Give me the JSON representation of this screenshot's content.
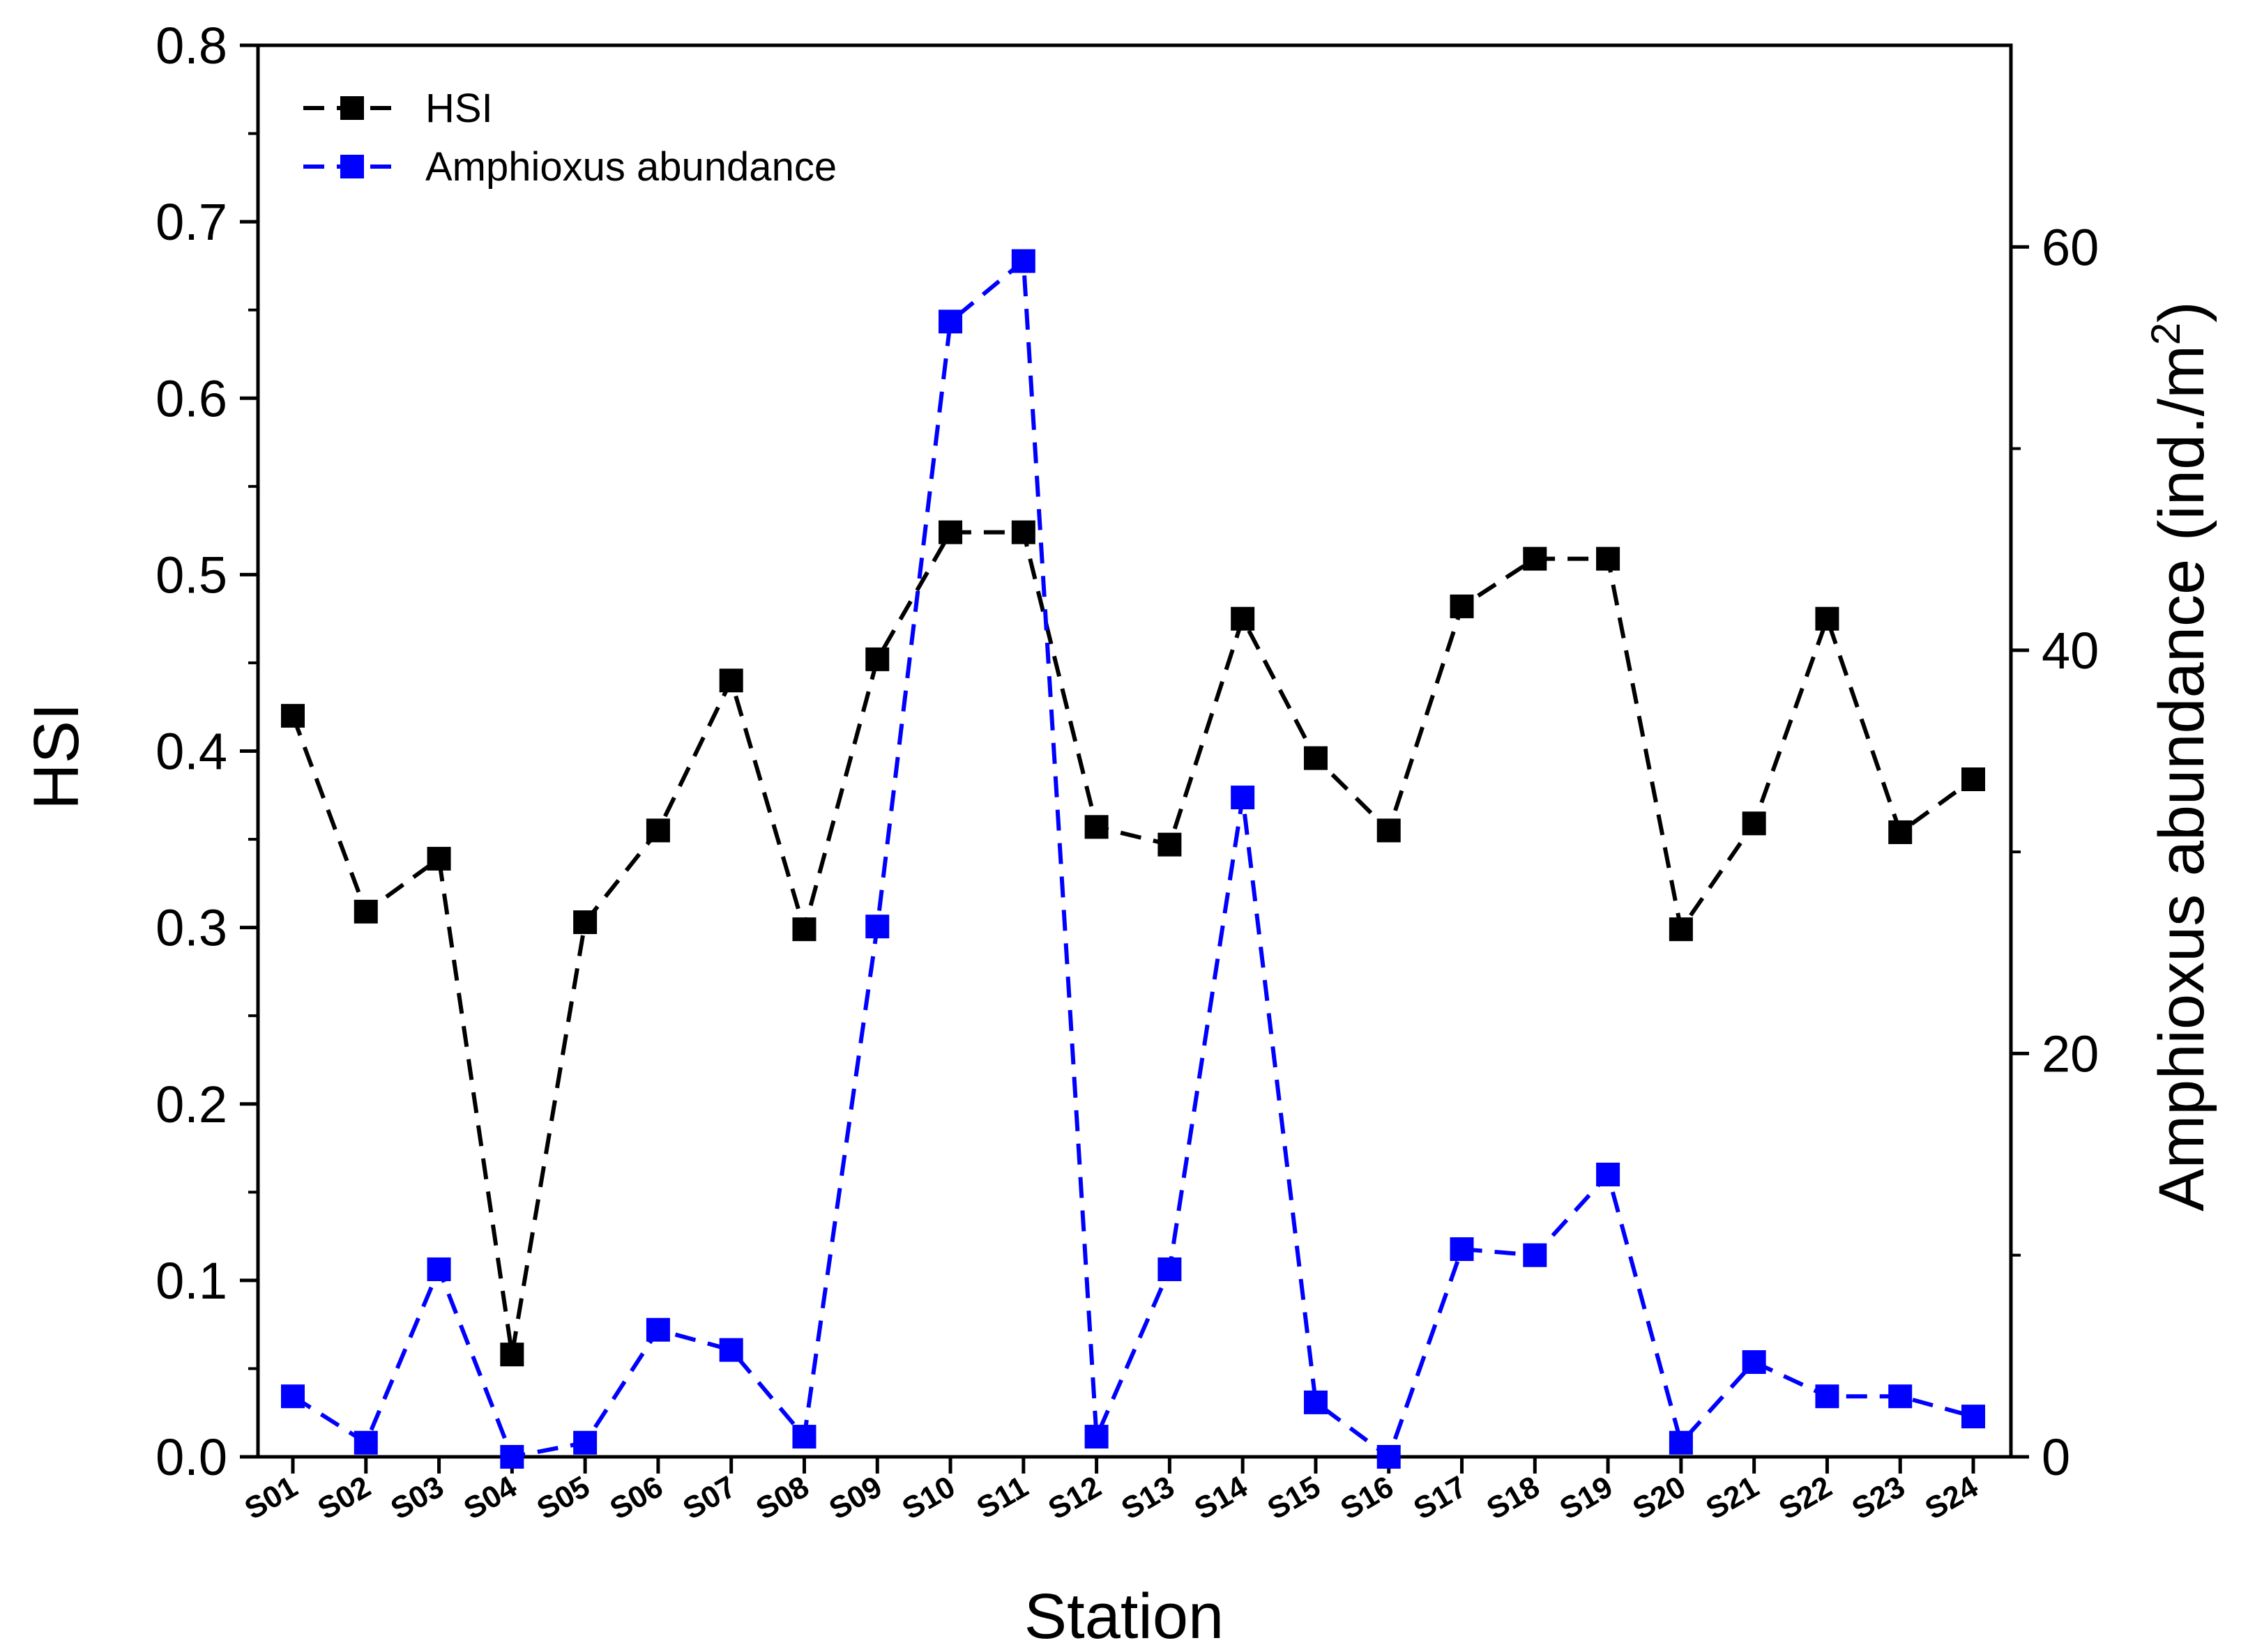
{
  "chart_data": {
    "type": "line",
    "categories": [
      "S01",
      "S02",
      "S03",
      "S04",
      "S05",
      "S06",
      "S07",
      "S08",
      "S09",
      "S10",
      "S11",
      "S12",
      "S13",
      "S14",
      "S15",
      "S16",
      "S17",
      "S18",
      "S19",
      "S20",
      "S21",
      "S22",
      "S23",
      "S24"
    ],
    "xlabel": "Station",
    "ylabel": "HSI",
    "y2label": "Amphioxus abundance (ind./m",
    "y2label_superscript": "2",
    "y2label_close": ")",
    "ylim": [
      0,
      0.8
    ],
    "y2lim": [
      0,
      70
    ],
    "yticks": [
      "0.0",
      "0.1",
      "0.2",
      "0.3",
      "0.4",
      "0.5",
      "0.6",
      "0.7",
      "0.8"
    ],
    "y2ticks": [
      "0",
      "20",
      "40",
      "60"
    ],
    "legend_position": "top-left",
    "grid": false,
    "series": [
      {
        "name": "HSI",
        "axis": "left",
        "color": "#000000",
        "line_style": "dashed",
        "marker": "square",
        "values": [
          0.42,
          0.309,
          0.339,
          0.058,
          0.303,
          0.355,
          0.44,
          0.299,
          0.452,
          0.524,
          0.524,
          0.357,
          0.347,
          0.475,
          0.396,
          0.355,
          0.482,
          0.509,
          0.509,
          0.299,
          0.359,
          0.475,
          0.354,
          0.384
        ]
      },
      {
        "name": "Amphioxus abundance",
        "axis": "right",
        "color": "#0000ff",
        "line_style": "dashed",
        "marker": "square",
        "values": [
          3.0,
          0.7,
          9.3,
          0.0,
          0.7,
          6.3,
          5.3,
          1.0,
          26.3,
          56.3,
          59.3,
          1.0,
          9.3,
          32.7,
          2.7,
          0.0,
          10.3,
          10.0,
          14.0,
          0.7,
          4.7,
          3.0,
          3.0,
          2.0
        ]
      }
    ]
  }
}
